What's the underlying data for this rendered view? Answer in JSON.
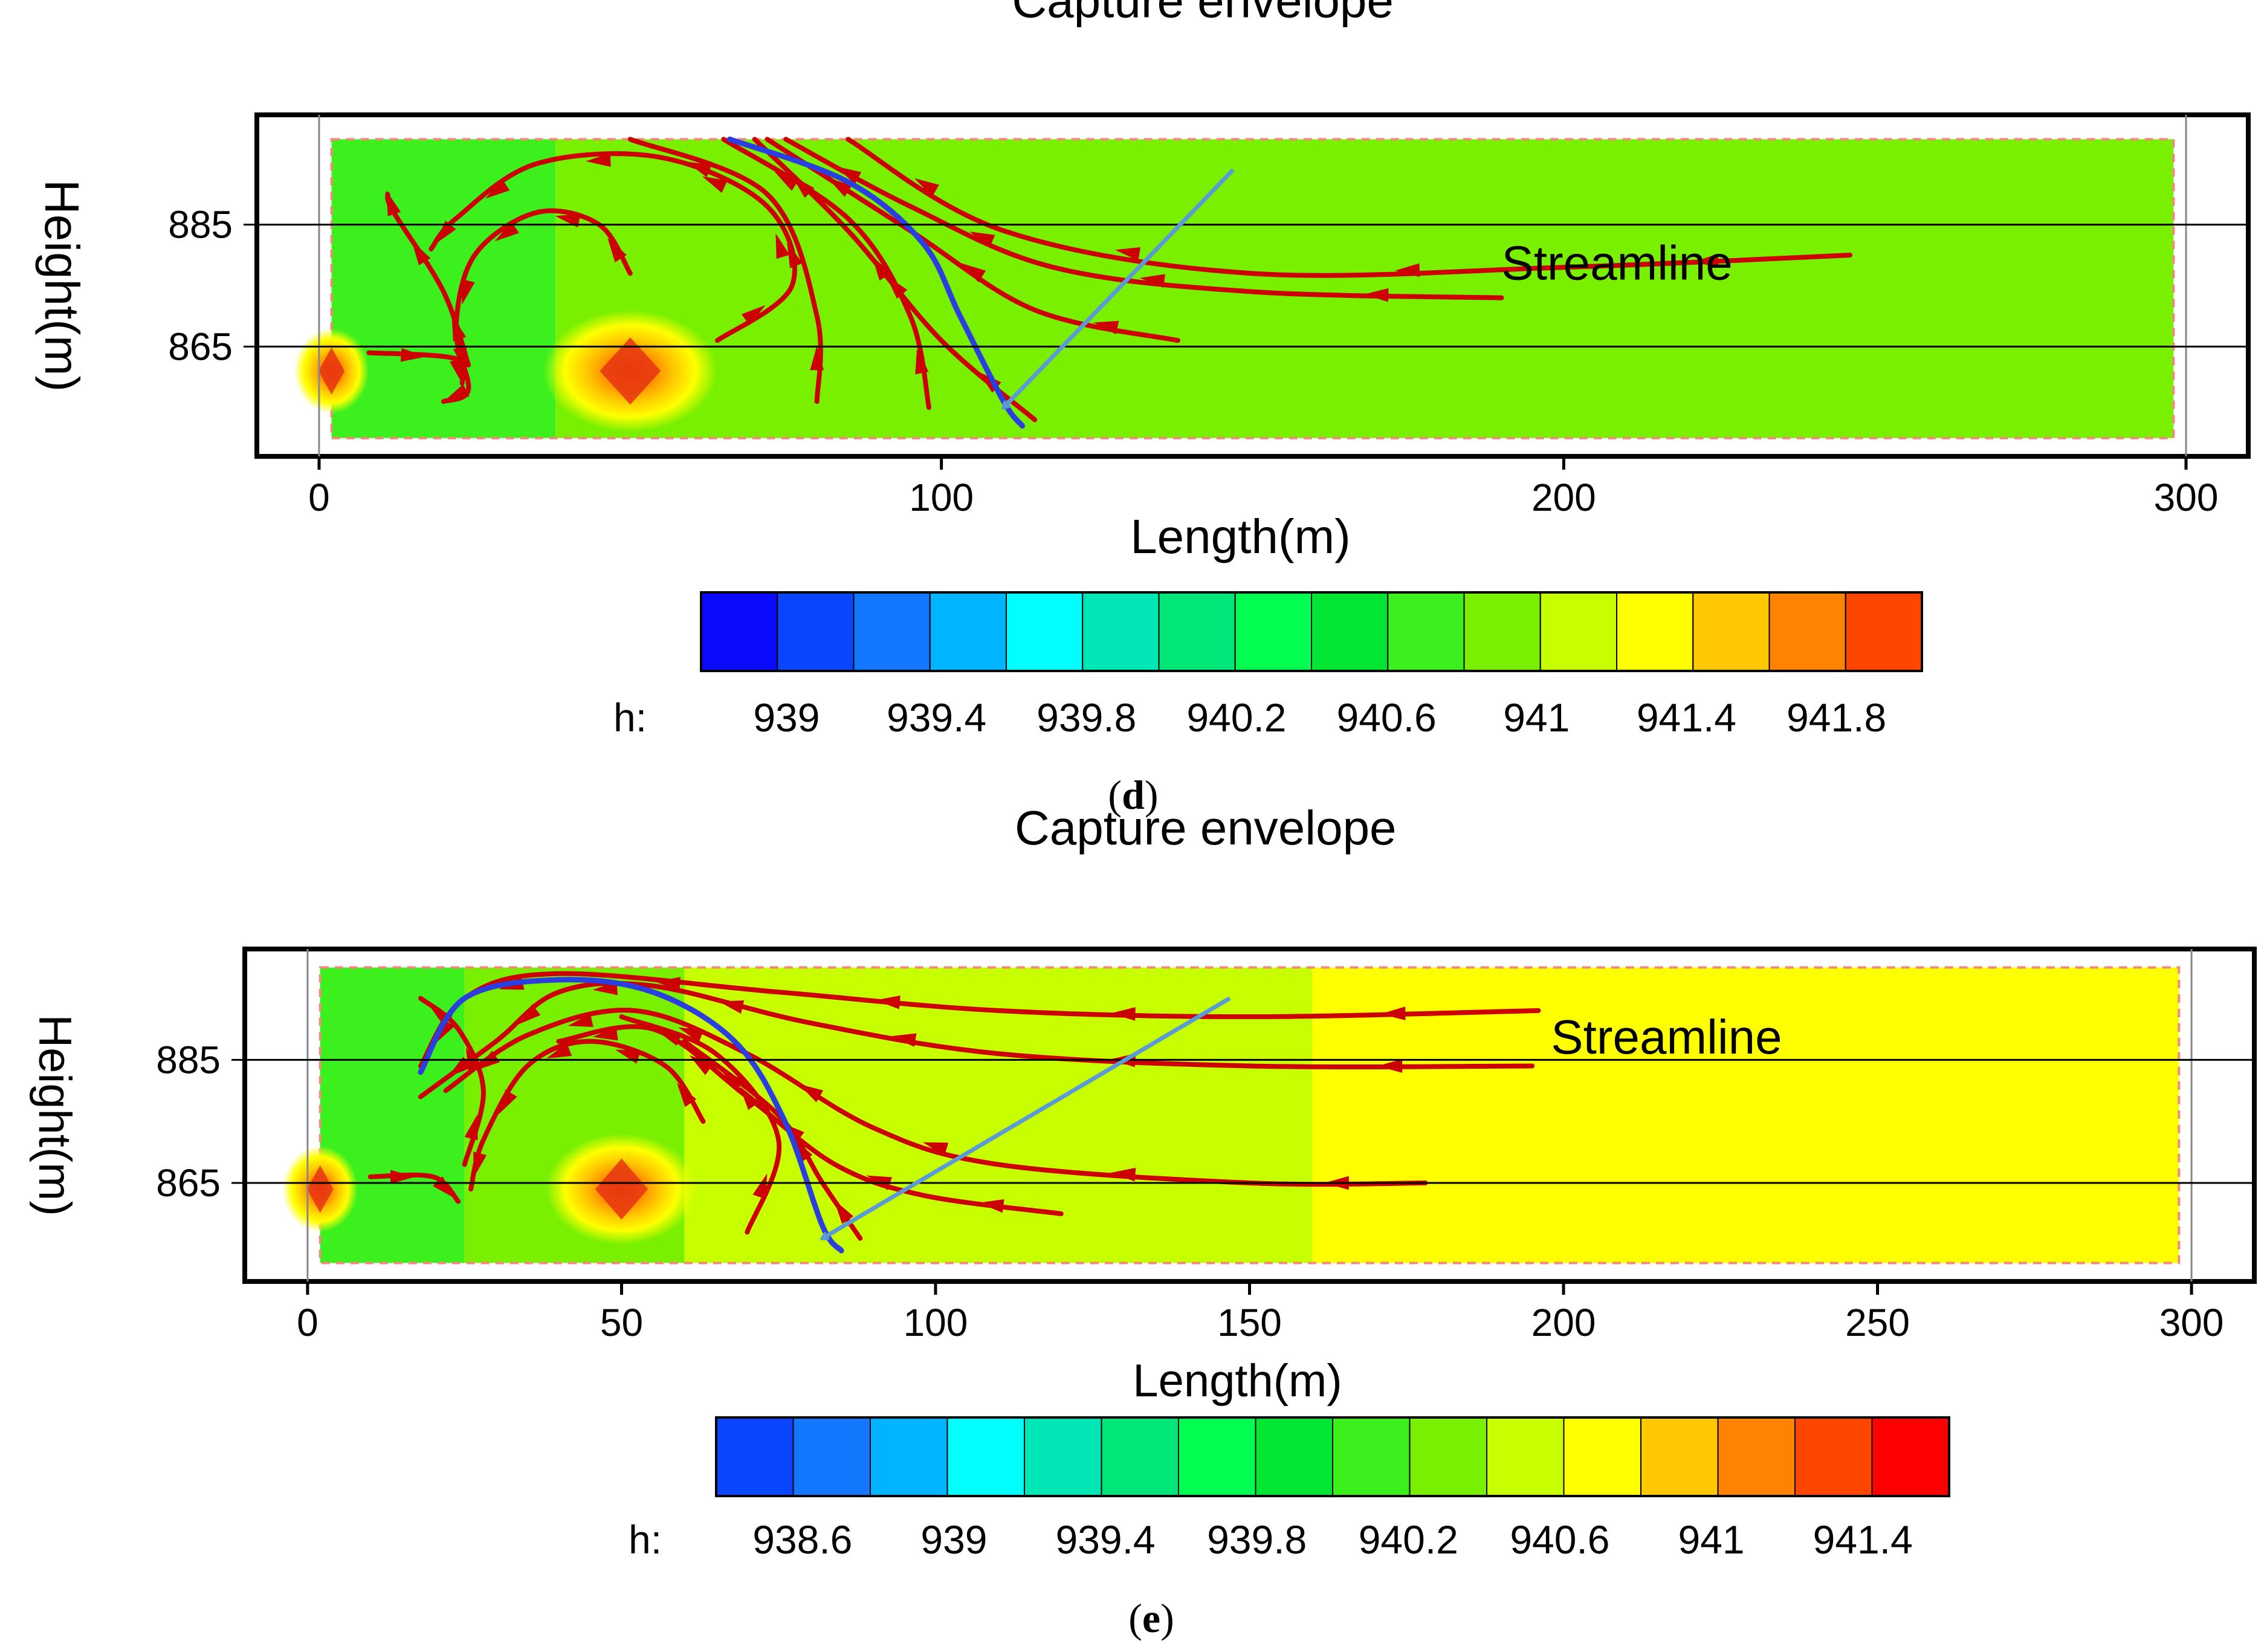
{
  "colors": {
    "streamline": "#cc0000",
    "envelope": "#2b3fe0",
    "annotation_arrow": "#5b9bd5",
    "frame": "#000000",
    "domain_border": "#f08a7a"
  },
  "colorbar_palette": [
    "#0a0aff",
    "#0a46ff",
    "#1478ff",
    "#00b4ff",
    "#00ffff",
    "#00e6b4",
    "#00e678",
    "#00ff50",
    "#00e632",
    "#3cf01e",
    "#78f000",
    "#c8ff00",
    "#ffff00",
    "#ffc800",
    "#ff8200",
    "#ff4600",
    "#ff0000"
  ],
  "chart_data": [
    {
      "type": "contour",
      "panel_label_open": "(",
      "panel_label": "d",
      "panel_label_close": ")",
      "xlabel": "Length(m)",
      "ylabel": "Height(m)",
      "xlim": [
        -10,
        310
      ],
      "ylim": [
        847,
        903
      ],
      "x_ticks": [
        "0",
        "100",
        "200",
        "300"
      ],
      "x_tick_values": [
        0,
        100,
        200,
        300
      ],
      "y_ticks": [
        "885",
        "865"
      ],
      "y_tick_values": [
        885,
        865
      ],
      "domain": {
        "x": [
          2,
          298
        ],
        "y": [
          850,
          899
        ]
      },
      "colorbar_prefix": "h:",
      "colorbar_labels": [
        "939",
        "939.4",
        "939.8",
        "940.2",
        "940.6",
        "941",
        "941.4",
        "941.8"
      ],
      "colorbar_values": [
        939,
        939.4,
        939.8,
        940.2,
        940.6,
        941,
        941.4,
        941.8
      ],
      "colorbar_bins": 16,
      "colorbar_palette_offset": 0,
      "fill_regions": [
        {
          "level": "940.6",
          "color": "#3cf01e",
          "x": [
            2,
            38
          ],
          "y": [
            850,
            899
          ]
        },
        {
          "level": "941",
          "color": "#78f000",
          "x": [
            38,
            298
          ],
          "y": [
            850,
            899
          ]
        }
      ],
      "hotspots": [
        {
          "x": 50,
          "y": 861,
          "rx": 14,
          "ry": 10
        },
        {
          "x": 2,
          "y": 861,
          "rx": 6,
          "ry": 7
        }
      ],
      "annotations": [
        {
          "text": "Capture envelope",
          "x": 142,
          "y": 919,
          "from": [
            143,
            894
          ],
          "to": [
            110,
            855
          ]
        },
        {
          "text": "Streamline",
          "x": 190,
          "y": 876
        }
      ],
      "streamlines": [
        [
          [
            246,
            880
          ],
          [
            200,
            878
          ],
          [
            150,
            877
          ],
          [
            110,
            884
          ],
          [
            85,
            899
          ]
        ],
        [
          [
            190,
            873
          ],
          [
            150,
            874
          ],
          [
            118,
            878
          ],
          [
            95,
            888
          ],
          [
            75,
            899
          ]
        ],
        [
          [
            138,
            866
          ],
          [
            115,
            871
          ],
          [
            95,
            884
          ],
          [
            72,
            899
          ]
        ],
        [
          [
            115,
            853
          ],
          [
            100,
            866
          ],
          [
            85,
            884
          ],
          [
            70,
            899
          ]
        ],
        [
          [
            98,
            855
          ],
          [
            95,
            870
          ],
          [
            85,
            886
          ],
          [
            65,
            899
          ]
        ],
        [
          [
            80,
            856
          ],
          [
            80,
            870
          ],
          [
            72,
            890
          ],
          [
            50,
            899
          ]
        ],
        [
          [
            64,
            866
          ],
          [
            76,
            875
          ],
          [
            72,
            888
          ],
          [
            55,
            896
          ],
          [
            35,
            895
          ],
          [
            22,
            886
          ],
          [
            18,
            881
          ]
        ],
        [
          [
            50,
            877
          ],
          [
            45,
            885
          ],
          [
            35,
            887
          ],
          [
            25,
            880
          ],
          [
            22,
            868
          ],
          [
            24,
            858
          ],
          [
            20,
            856
          ]
        ],
        [
          [
            24,
            862
          ],
          [
            20,
            874
          ],
          [
            12,
            887
          ],
          [
            11,
            890
          ]
        ],
        [
          [
            8,
            864
          ],
          [
            22,
            863
          ],
          [
            23,
            859
          ]
        ]
      ],
      "envelope": [
        [
          66,
          899
        ],
        [
          85,
          892
        ],
        [
          97,
          882
        ],
        [
          103,
          870
        ],
        [
          110,
          856
        ],
        [
          113,
          852
        ]
      ]
    },
    {
      "type": "contour",
      "panel_label_open": "(",
      "panel_label": "e",
      "panel_label_close": ")",
      "xlabel": "Length(m)",
      "ylabel": "Height(m)",
      "xlim": [
        -10,
        310
      ],
      "ylim": [
        849,
        903
      ],
      "x_ticks": [
        "0",
        "50",
        "100",
        "150",
        "200",
        "250",
        "300"
      ],
      "x_tick_values": [
        0,
        50,
        100,
        150,
        200,
        250,
        300
      ],
      "y_ticks": [
        "885",
        "865"
      ],
      "y_tick_values": [
        885,
        865
      ],
      "domain": {
        "x": [
          2,
          298
        ],
        "y": [
          852,
          900
        ]
      },
      "colorbar_prefix": "h:",
      "colorbar_labels": [
        "938.6",
        "939",
        "939.4",
        "939.8",
        "940.2",
        "940.6",
        "941",
        "941.4"
      ],
      "colorbar_values": [
        938.6,
        939,
        939.4,
        939.8,
        940.2,
        940.6,
        941,
        941.4
      ],
      "colorbar_bins": 16,
      "colorbar_palette_offset": 1,
      "fill_regions": [
        {
          "level": "940.6",
          "color": "#3cf01e",
          "x": [
            2,
            25
          ],
          "y": [
            852,
            900
          ]
        },
        {
          "level": "941",
          "color": "#78f000",
          "x": [
            25,
            60
          ],
          "y": [
            852,
            900
          ]
        },
        {
          "level": "941.2",
          "color": "#c8ff00",
          "x": [
            60,
            160
          ],
          "y": [
            852,
            900
          ]
        },
        {
          "level": "941.4",
          "color": "#ffff00",
          "x": [
            160,
            298
          ],
          "y": [
            852,
            900
          ]
        }
      ],
      "hotspots": [
        {
          "x": 50,
          "y": 864,
          "rx": 12,
          "ry": 9
        },
        {
          "x": 2,
          "y": 864,
          "rx": 6,
          "ry": 7
        }
      ],
      "annotations": [
        {
          "text": "Capture envelope",
          "x": 143,
          "y": 920,
          "from": [
            143,
            895
          ],
          "to": [
            82,
            856
          ]
        },
        {
          "text": "Streamline",
          "x": 198,
          "y": 886
        }
      ],
      "streamlines": [
        [
          [
            196,
            893
          ],
          [
            150,
            892
          ],
          [
            110,
            893
          ],
          [
            75,
            896
          ],
          [
            40,
            899
          ],
          [
            25,
            895
          ],
          [
            18,
            884
          ]
        ],
        [
          [
            195,
            884
          ],
          [
            150,
            884
          ],
          [
            110,
            886
          ],
          [
            80,
            891
          ],
          [
            55,
            897
          ],
          [
            40,
            896
          ],
          [
            30,
            888
          ],
          [
            18,
            879
          ]
        ],
        [
          [
            178,
            865
          ],
          [
            150,
            865
          ],
          [
            110,
            868
          ],
          [
            90,
            874
          ],
          [
            70,
            886
          ],
          [
            52,
            893
          ],
          [
            35,
            889
          ],
          [
            22,
            880
          ]
        ],
        [
          [
            120,
            860
          ],
          [
            98,
            863
          ],
          [
            84,
            868
          ],
          [
            70,
            879
          ],
          [
            55,
            890
          ],
          [
            40,
            888
          ]
        ],
        [
          [
            88,
            856
          ],
          [
            82,
            865
          ],
          [
            75,
            876
          ],
          [
            60,
            888
          ]
        ],
        [
          [
            70,
            857
          ],
          [
            75,
            872
          ],
          [
            65,
            886
          ],
          [
            50,
            892
          ]
        ],
        [
          [
            63,
            875
          ],
          [
            57,
            884
          ],
          [
            45,
            888
          ],
          [
            35,
            884
          ],
          [
            28,
            872
          ],
          [
            26,
            864
          ]
        ],
        [
          [
            25,
            868
          ],
          [
            28,
            880
          ],
          [
            24,
            890
          ],
          [
            18,
            895
          ]
        ],
        [
          [
            10,
            866
          ],
          [
            20,
            866
          ],
          [
            24,
            862
          ]
        ]
      ],
      "envelope": [
        [
          18,
          883
        ],
        [
          25,
          895
        ],
        [
          40,
          898
        ],
        [
          55,
          896
        ],
        [
          68,
          888
        ],
        [
          76,
          875
        ],
        [
          82,
          858
        ],
        [
          85,
          854
        ]
      ]
    }
  ]
}
